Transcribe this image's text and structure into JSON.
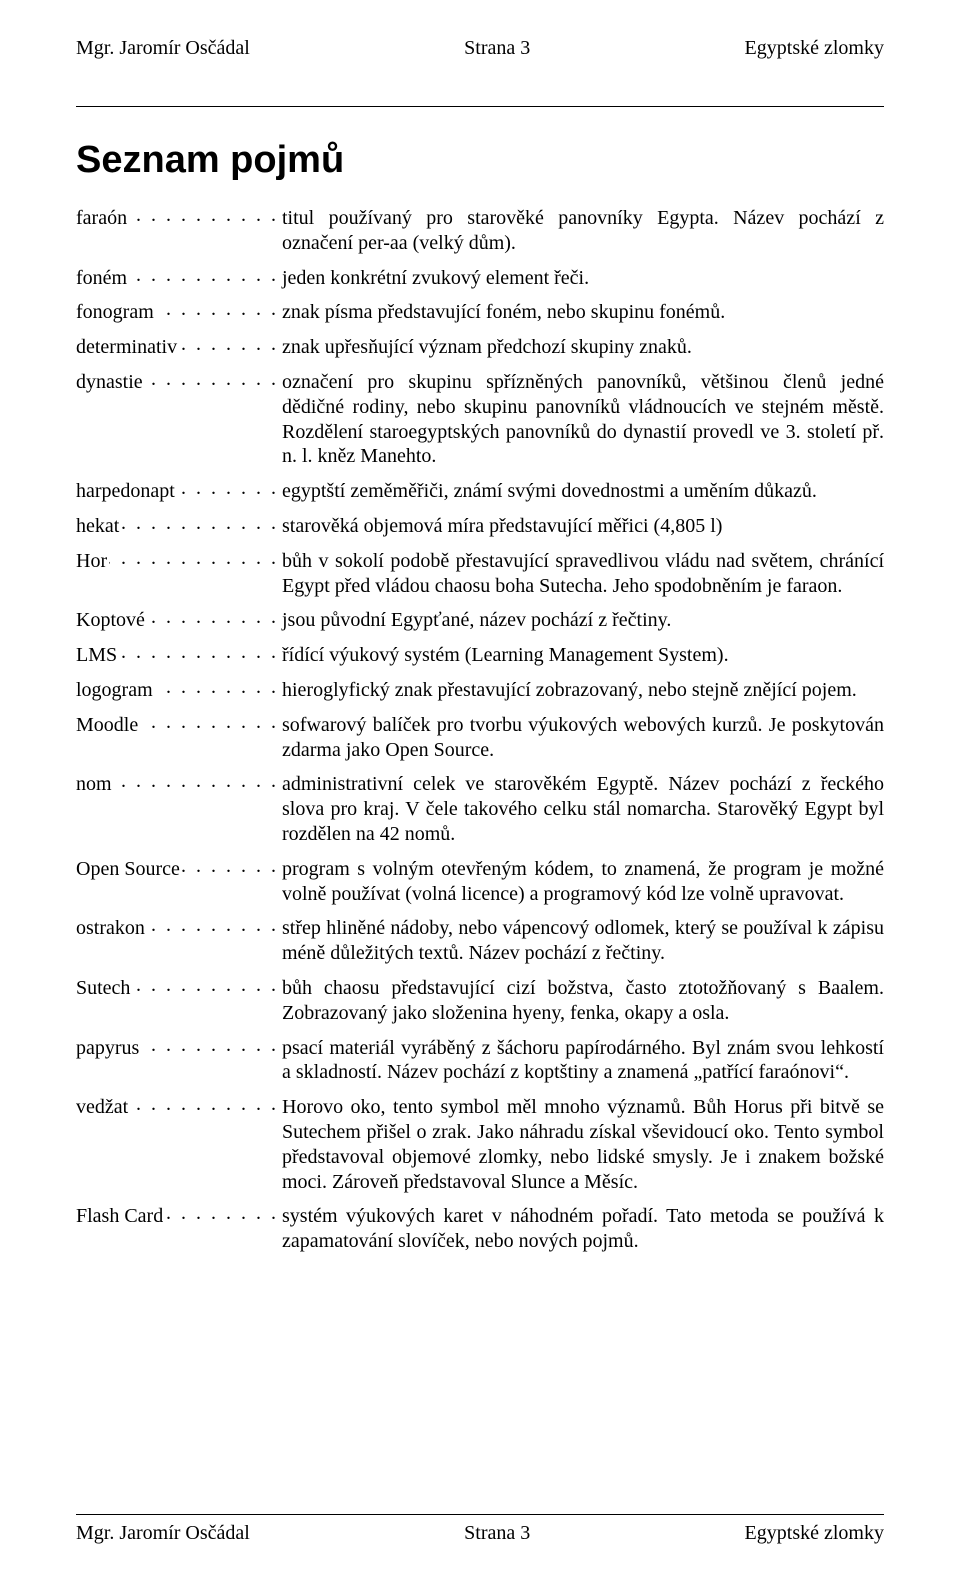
{
  "header": {
    "left": "Mgr. Jaromír Osčádal",
    "center": "Strana 3",
    "right": "Egyptské zlomky"
  },
  "footer": {
    "left": "Mgr. Jaromír Osčádal",
    "center": "Strana 3",
    "right": "Egyptské zlomky"
  },
  "title": "Seznam pojmů",
  "entries": [
    {
      "term": "faraón",
      "def": "titul používaný pro starověké panovníky Egypta. Název pochází z označení per-aa (velký dům)."
    },
    {
      "term": "foném",
      "def": "jeden konkrétní zvukový element řeči."
    },
    {
      "term": "fonogram",
      "def": "znak písma představující foném, nebo skupinu fonémů."
    },
    {
      "term": "determinativ",
      "def": "znak upřesňující význam předchozí skupiny znaků."
    },
    {
      "term": "dynastie",
      "def": "označení pro skupinu spřízněných panovníků, většinou členů jedné dědičné rodiny, nebo skupinu panovníků vládnoucích ve stejném městě. Rozdělení staroegyptských panovníků do dynastií provedl ve 3. století př. n. l. kněz Manehto."
    },
    {
      "term": "harpedonapt",
      "def": "egyptští zeměměřiči, známí svými dovednostmi a uměním důkazů."
    },
    {
      "term": "hekat",
      "def": "starověká objemová míra představující měřici (4,805 l)"
    },
    {
      "term": "Hor",
      "def": "bůh v sokolí podobě přestavující spravedlivou vládu nad světem, chránící Egypt před vládou chaosu boha Sutecha. Jeho spodobněním je faraon."
    },
    {
      "term": "Koptové",
      "def": "jsou původní Egypťané, název pochází z řečtiny."
    },
    {
      "term": "LMS",
      "def": "řídící výukový systém (Learning Management System)."
    },
    {
      "term": "logogram",
      "def": "hieroglyfický znak přestavující zobrazovaný, nebo stejně znějící pojem."
    },
    {
      "term": "Moodle",
      "def": "sofwarový balíček pro tvorbu výukových webových kurzů. Je poskytován zdarma jako Open Source."
    },
    {
      "term": "nom",
      "def": "administrativní celek ve starověkém Egyptě. Název pochází z řeckého slova pro kraj. V čele takového celku stál nomarcha. Starověký Egypt byl rozdělen na 42 nomů."
    },
    {
      "term": "Open Source",
      "def": "program s volným otevřeným kódem, to znamená, že program je možné volně používat (volná licence) a programový kód lze volně upravovat."
    },
    {
      "term": "ostrakon",
      "def": "střep hliněné nádoby, nebo vápencový odlomek, který se používal k zápisu méně důležitých textů. Název pochází z řečtiny."
    },
    {
      "term": "Sutech",
      "def": "bůh chaosu představující cizí božstva, často ztotožňovaný s Baalem. Zobrazovaný jako složenina hyeny, fenka, okapy a osla."
    },
    {
      "term": "papyrus",
      "def": "psací materiál vyráběný z šáchoru papírodárného. Byl znám svou lehkostí a skladností. Název pochází z koptštiny a znamená „patřící faraónovi“."
    },
    {
      "term": "vedžat",
      "def": "Horovo oko, tento symbol měl mnoho významů. Bůh Horus při bitvě se Sutechem přišel o zrak. Jako náhradu získal vševidoucí oko. Tento symbol představoval objemové zlomky, nebo lidské smysly. Je i znakem božské moci. Zároveň představoval Slunce a Měsíc."
    },
    {
      "term": "Flash Card",
      "def": "systém výukových karet v náhodném pořadí. Tato metoda se používá k zapamatování slovíček, nebo nových pojmů."
    }
  ]
}
